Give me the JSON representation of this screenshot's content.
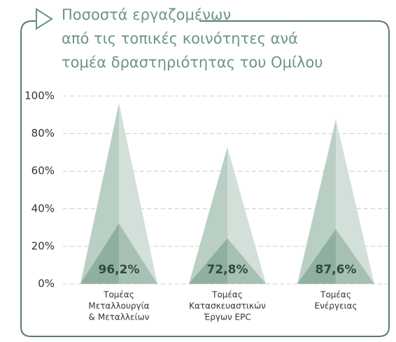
{
  "chart_data": {
    "type": "pictogram-bar",
    "title": [
      "Ποσοστά εργαζομένων",
      "από τις τοπικές κοινότητες ανά",
      "τομέα δραστηριότητας του Ομίλου"
    ],
    "categories": [
      [
        "Τομέας",
        "Μεταλλουργία",
        "& Μεταλλείων"
      ],
      [
        "Τομέας",
        "Κατασκευαστικών",
        "Έργων EPC"
      ],
      [
        "Τομέας",
        "Ενέργειας"
      ]
    ],
    "values": [
      96.2,
      72.8,
      87.6
    ],
    "value_labels": [
      "96,2%",
      "72,8%",
      "87,6%"
    ],
    "ylim": [
      0,
      100
    ],
    "yticks": [
      {
        "value": 0,
        "label": "0%"
      },
      {
        "value": 20,
        "label": "20%"
      },
      {
        "value": 40,
        "label": "40%"
      },
      {
        "value": 60,
        "label": "60%"
      },
      {
        "value": 80,
        "label": "80%"
      },
      {
        "value": 100,
        "label": "100%"
      }
    ],
    "grid": true,
    "color": "#8fb0a0"
  }
}
